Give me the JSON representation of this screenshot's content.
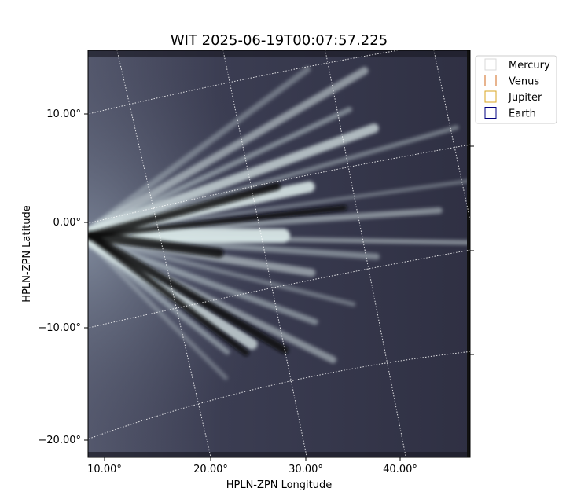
{
  "chart_data": {
    "type": "heatmap",
    "title": "WIT 2025-06-19T00:07:57.225",
    "xlabel": "HPLN-ZPN Longitude",
    "ylabel": "HPLN-ZPN Latitude",
    "x_ticks": [
      "10.00°",
      "20.00°",
      "30.00°",
      "40.00°"
    ],
    "y_ticks": [
      "10.00°",
      "0.00°",
      "−10.00°",
      "−20.00°"
    ],
    "colormap": "bone",
    "grid": true,
    "grid_style": "dotted-white",
    "legend_position": "upper-right-outside",
    "legend": [
      {
        "label": "Mercury",
        "color": "#d9d9d9"
      },
      {
        "label": "Venus",
        "color": "#d2691e"
      },
      {
        "label": "Jupiter",
        "color": "#daa520"
      },
      {
        "label": "Earth",
        "color": "#000080"
      }
    ]
  }
}
